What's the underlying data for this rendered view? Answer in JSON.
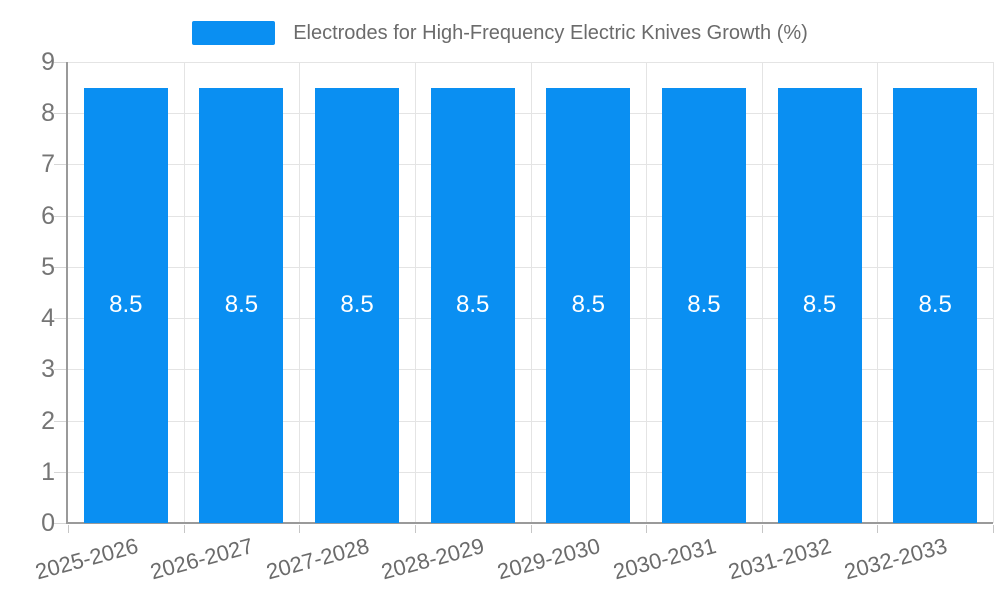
{
  "colors": {
    "bar": "#0a8ff2",
    "grid": "#e4e4e4",
    "axis": "#9a9a9a",
    "y_tick": "#d6d6d6",
    "x_tick": "#c6c6c6",
    "title_text": "#6b6b6b",
    "y_label_text": "#757575",
    "x_label_text": "#6b6b6b",
    "value_label_text": "#ffffff",
    "background": "#ffffff"
  },
  "chart_data": {
    "type": "bar",
    "title": "Electrodes for High-Frequency Electric Knives Growth (%)",
    "categories": [
      "2025-2026",
      "2026-2027",
      "2027-2028",
      "2028-2029",
      "2029-2030",
      "2030-2031",
      "2031-2032",
      "2032-2033"
    ],
    "values": [
      8.5,
      8.5,
      8.5,
      8.5,
      8.5,
      8.5,
      8.5,
      8.5
    ],
    "value_labels": [
      "8.5",
      "8.5",
      "8.5",
      "8.5",
      "8.5",
      "8.5",
      "8.5",
      "8.5"
    ],
    "xlabel": "",
    "ylabel": "",
    "ylim": [
      0,
      9
    ],
    "y_ticks": [
      "0",
      "1",
      "2",
      "3",
      "4",
      "5",
      "6",
      "7",
      "8",
      "9"
    ],
    "grid": true,
    "legend_position": "top",
    "x_label_rotation": -15
  }
}
